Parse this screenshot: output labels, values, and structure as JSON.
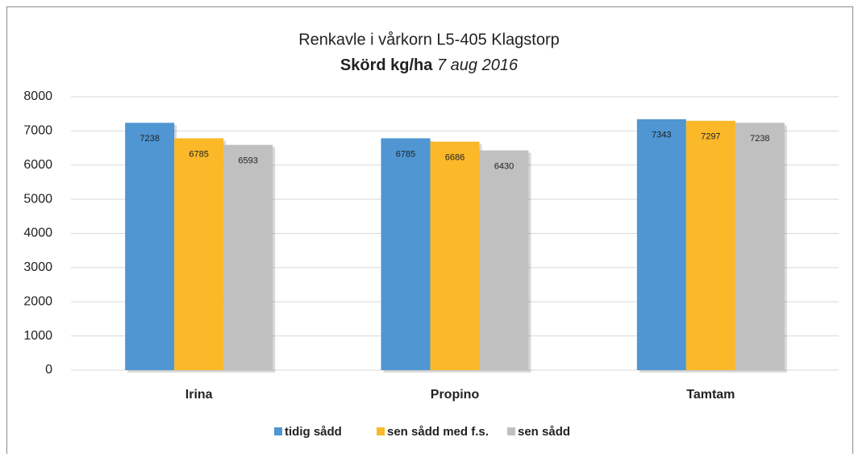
{
  "chart_data": {
    "type": "bar",
    "title": "Renkavle i vårkorn L5-405 Klagstorp",
    "subtitle": [
      "Skörd kg/ha",
      "7 aug 2016"
    ],
    "categories": [
      "Irina",
      "Propino",
      "Tamtam"
    ],
    "series": [
      {
        "name": "tidig sådd",
        "color": "#4f96d3",
        "values": [
          7238,
          6785,
          7343
        ]
      },
      {
        "name": "sen sådd med f.s.",
        "color": "#fbb829",
        "values": [
          6785,
          6686,
          7297
        ]
      },
      {
        "name": "sen sådd",
        "color": "#c0c0c0",
        "values": [
          6593,
          6430,
          7238
        ]
      }
    ],
    "ylim": [
      0,
      8000
    ],
    "yticks": [
      0,
      1000,
      2000,
      3000,
      4000,
      5000,
      6000,
      7000,
      8000
    ],
    "grid": true,
    "legend": "bottom"
  }
}
